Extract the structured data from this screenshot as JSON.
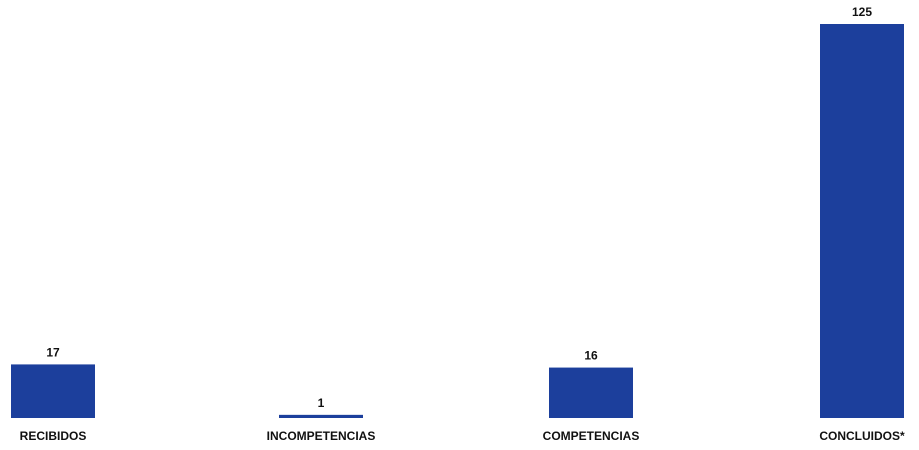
{
  "chart_data": {
    "type": "bar",
    "categories": [
      "RECIBIDOS",
      "INCOMPETENCIAS",
      "COMPETENCIAS",
      "CONCLUIDOS*"
    ],
    "values": [
      17,
      1,
      16,
      125
    ],
    "data_labels": [
      "17",
      "1",
      "16",
      "125"
    ],
    "title": "",
    "xlabel": "",
    "ylabel": "",
    "ylim": [
      0,
      125
    ],
    "grid": false,
    "legend": "none",
    "bar_color": "#1c3f9c"
  }
}
